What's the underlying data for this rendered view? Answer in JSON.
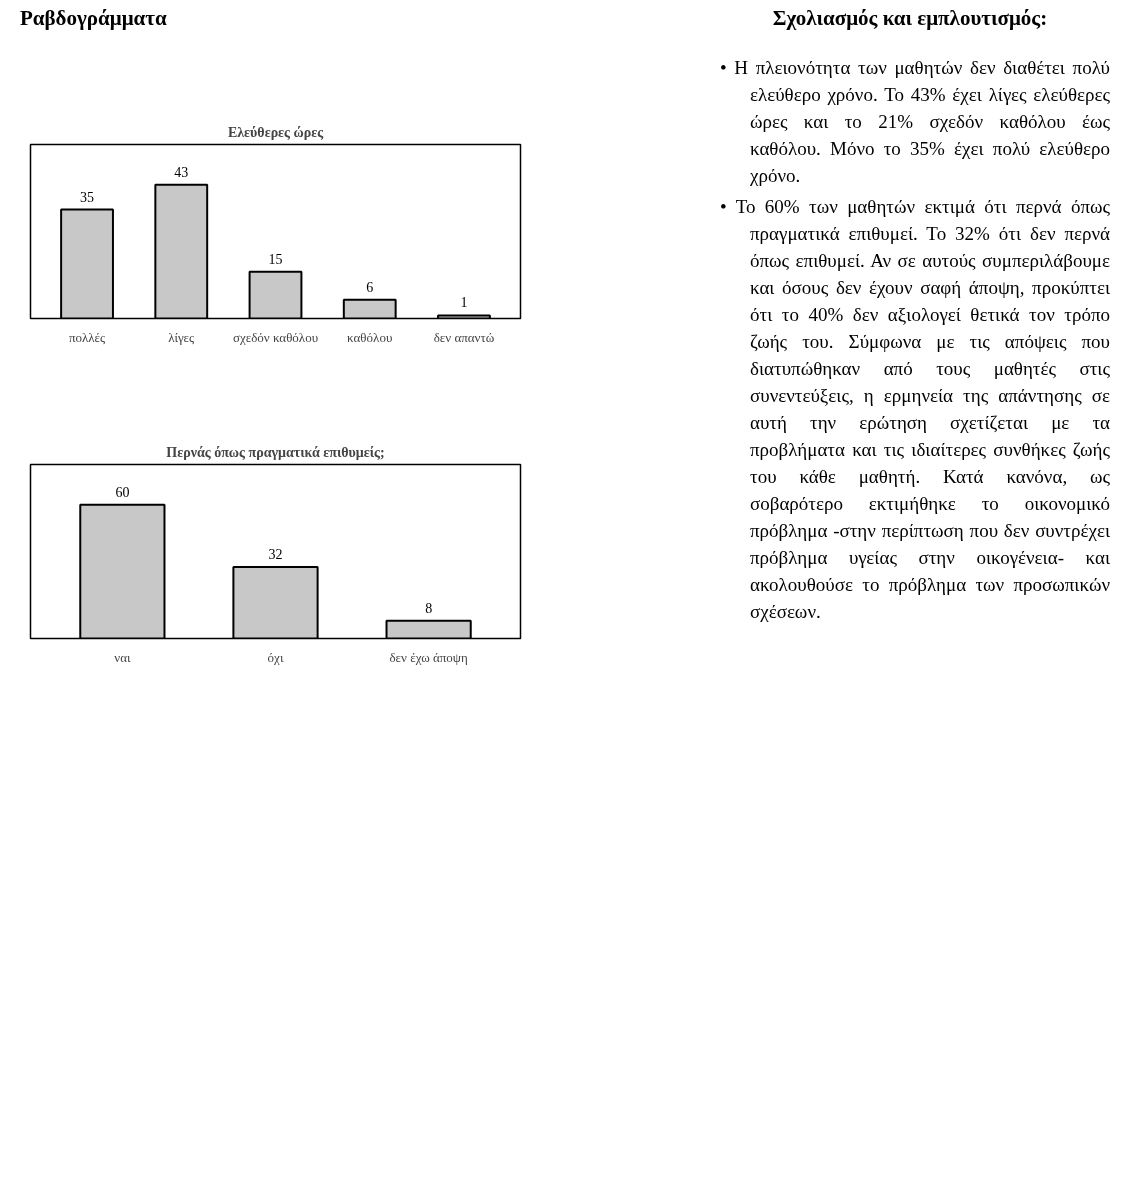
{
  "chart_data": [
    {
      "type": "other",
      "title": "Ραβδογράμματα"
    },
    {
      "type": "bar",
      "title": "Ελεύθερες ώρες",
      "categories": [
        "πολλές",
        "λίγες",
        "σχεδόν καθόλου",
        "καθόλου",
        "δεν απαντώ"
      ],
      "values": [
        35,
        43,
        15,
        6,
        1
      ],
      "color": "#c8c8c8",
      "data_labels": true
    },
    {
      "type": "bar",
      "title": "Περνάς όπως πραγματικά επιθυμείς;",
      "categories": [
        "ναι",
        "όχι",
        "δεν έχω άποψη"
      ],
      "values": [
        60,
        32,
        8
      ],
      "color": "#c8c8c8",
      "data_labels": true
    },
    {
      "type": "other",
      "title": "Σχολιασμός και εμπλουτισμός:",
      "annotations": [
        "•  Η πλειονότητα των μαθητών δεν διαθέτει πολύ ελεύθερο χρόνο. Το 43% έχει λίγες ελεύθερες ώρες και το 21% σχεδόν καθόλου έως καθόλου. Μόνο το 35% έχει πολύ ελεύθερο χρόνο.",
        "•  Το 60% των μαθητών εκτιμά ότι περνά όπως πραγματικά επιθυμεί. Το 32% ότι δεν περνά όπως επιθυμεί. Αν σε αυτούς συμπεριλάβουμε και όσους δεν έχουν σαφή άποψη, προκύπτει ότι το 40% δεν αξιολογεί θετικά τον τρόπο ζωής του. Σύμφωνα με τις απόψεις που διατυπώθηκαν από τους μαθητές στις συνεντεύξεις, η ερμηνεία της απάντησης σε αυτή την ερώτηση σχετίζεται με τα προβλήματα και τις ιδιαίτερες συνθήκες ζωής του κάθε μαθητή. Κατά κανόνα, ως σοβαρότερο εκτιμήθηκε το οικονομικό πρόβλημα -στην περίπτωση που δεν συντρέχει πρόβλημα υγείας στην οικογένεια- και ακολουθούσε το πρόβλημα των προσωπικών σχέσεων."
      ]
    }
  ]
}
